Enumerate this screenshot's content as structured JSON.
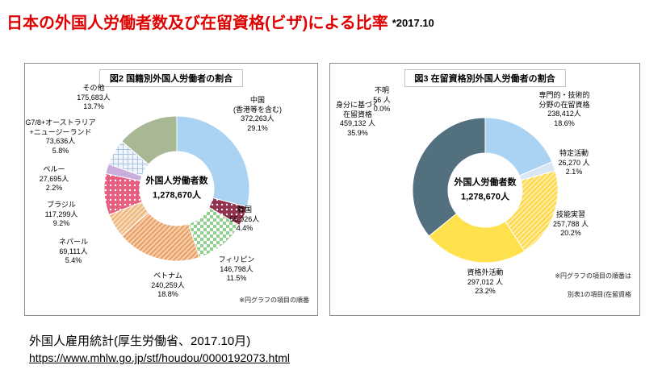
{
  "header": {
    "title": "日本の外国人労働者数及び在留資格(ビザ)による比率",
    "date_note": "*2017.10"
  },
  "chart_data": [
    {
      "type": "pie",
      "title": "図2 国籍別外国人労働者の割合",
      "center": [
        "外国人労働者数",
        "1,278,670人"
      ],
      "total_value": 1278670,
      "footnote_lines": [
        "※円グラフの項目の順番"
      ],
      "legend_position": "around",
      "segments": [
        {
          "name": "中国(香港等を含む)",
          "value": 372263,
          "pct": 29.1,
          "color": "#a9d2f3",
          "label_lines": [
            "中国",
            "(香港等を含む)",
            "372,263人",
            "29.1%"
          ]
        },
        {
          "name": "韓国",
          "value": 55926,
          "pct": 4.4,
          "color": "#93314e",
          "pattern": "dots",
          "label_lines": [
            "韓国",
            "55,926人",
            "4.4%"
          ]
        },
        {
          "name": "フィリピン",
          "value": 146798,
          "pct": 11.5,
          "color": "#8fd08f",
          "pattern": "checker",
          "label_lines": [
            "フィリピン",
            "146,798人",
            "11.5%"
          ]
        },
        {
          "name": "ベトナム",
          "value": 240259,
          "pct": 18.8,
          "color": "#eca36a",
          "pattern": "hatch",
          "label_lines": [
            "ベトナム",
            "240,259人",
            "18.8%"
          ]
        },
        {
          "name": "ネパール",
          "value": 69111,
          "pct": 5.4,
          "color": "#efb97f",
          "pattern": "hatch",
          "label_lines": [
            "ネパール",
            "69,111人",
            "5.4%"
          ]
        },
        {
          "name": "ブラジル",
          "value": 117299,
          "pct": 9.2,
          "color": "#e75f80",
          "pattern": "dots",
          "label_lines": [
            "ブラジル",
            "117,299人",
            "9.2%"
          ]
        },
        {
          "name": "ペルー",
          "value": 27695,
          "pct": 2.2,
          "color": "#c9aede",
          "label_lines": [
            "ペルー",
            "27,695人",
            "2.2%"
          ]
        },
        {
          "name": "G7/8+オーストラリア+ニュージーランド",
          "value": 73636,
          "pct": 5.8,
          "color": "#aac4e2",
          "pattern": "grid",
          "label_lines": [
            "G7/8+オーストラリア",
            "+ニュージーランド",
            "73,636人",
            "5.8%"
          ]
        },
        {
          "name": "その他",
          "value": 175683,
          "pct": 13.7,
          "color": "#a9b894",
          "label_lines": [
            "その他",
            "175,683人",
            "13.7%"
          ]
        }
      ]
    },
    {
      "type": "pie",
      "title": "図3 在留資格別外国人労働者の割合",
      "center": [
        "外国人労働者数",
        "1,278,670人"
      ],
      "total_value": 1278670,
      "footnote_lines": [
        "※円グラフの項目の順番は",
        "別表1の項目(在留資格"
      ],
      "legend_position": "around",
      "segments": [
        {
          "name": "不明",
          "value": 56,
          "pct": 0.0,
          "color": "#999999",
          "label_lines": [
            "不明",
            "56 人",
            "0.0%"
          ]
        },
        {
          "name": "専門的・技術的分野の在留資格",
          "value": 238412,
          "pct": 18.6,
          "color": "#a9d2f3",
          "label_lines": [
            "専門的・技術的",
            "分野の在留資格",
            "238,412人",
            "18.6%"
          ]
        },
        {
          "name": "特定活動",
          "value": 26270,
          "pct": 2.1,
          "color": "#d9e6f4",
          "label_lines": [
            "特定活動",
            "26,270 人",
            "2.1%"
          ]
        },
        {
          "name": "技能実習",
          "value": 257788,
          "pct": 20.2,
          "color": "#ffd94d",
          "pattern": "hatch",
          "label_lines": [
            "技能実習",
            "257,788 人",
            "20.2%"
          ]
        },
        {
          "name": "資格外活動",
          "value": 297012,
          "pct": 23.2,
          "color": "#ffe14d",
          "label_lines": [
            "資格外活動",
            "297,012 人",
            "23.2%"
          ]
        },
        {
          "name": "身分に基づく在留資格",
          "value": 459132,
          "pct": 35.9,
          "color": "#53707f",
          "label_lines": [
            "身分に基づく",
            "在留資格",
            "459,132 人",
            "35.9%"
          ]
        }
      ]
    }
  ],
  "footer": {
    "source": "外国人雇用統計(厚生労働省、2017.10月)",
    "link": "https://www.mhlw.go.jp/stf/houdou/0000192073.html"
  }
}
